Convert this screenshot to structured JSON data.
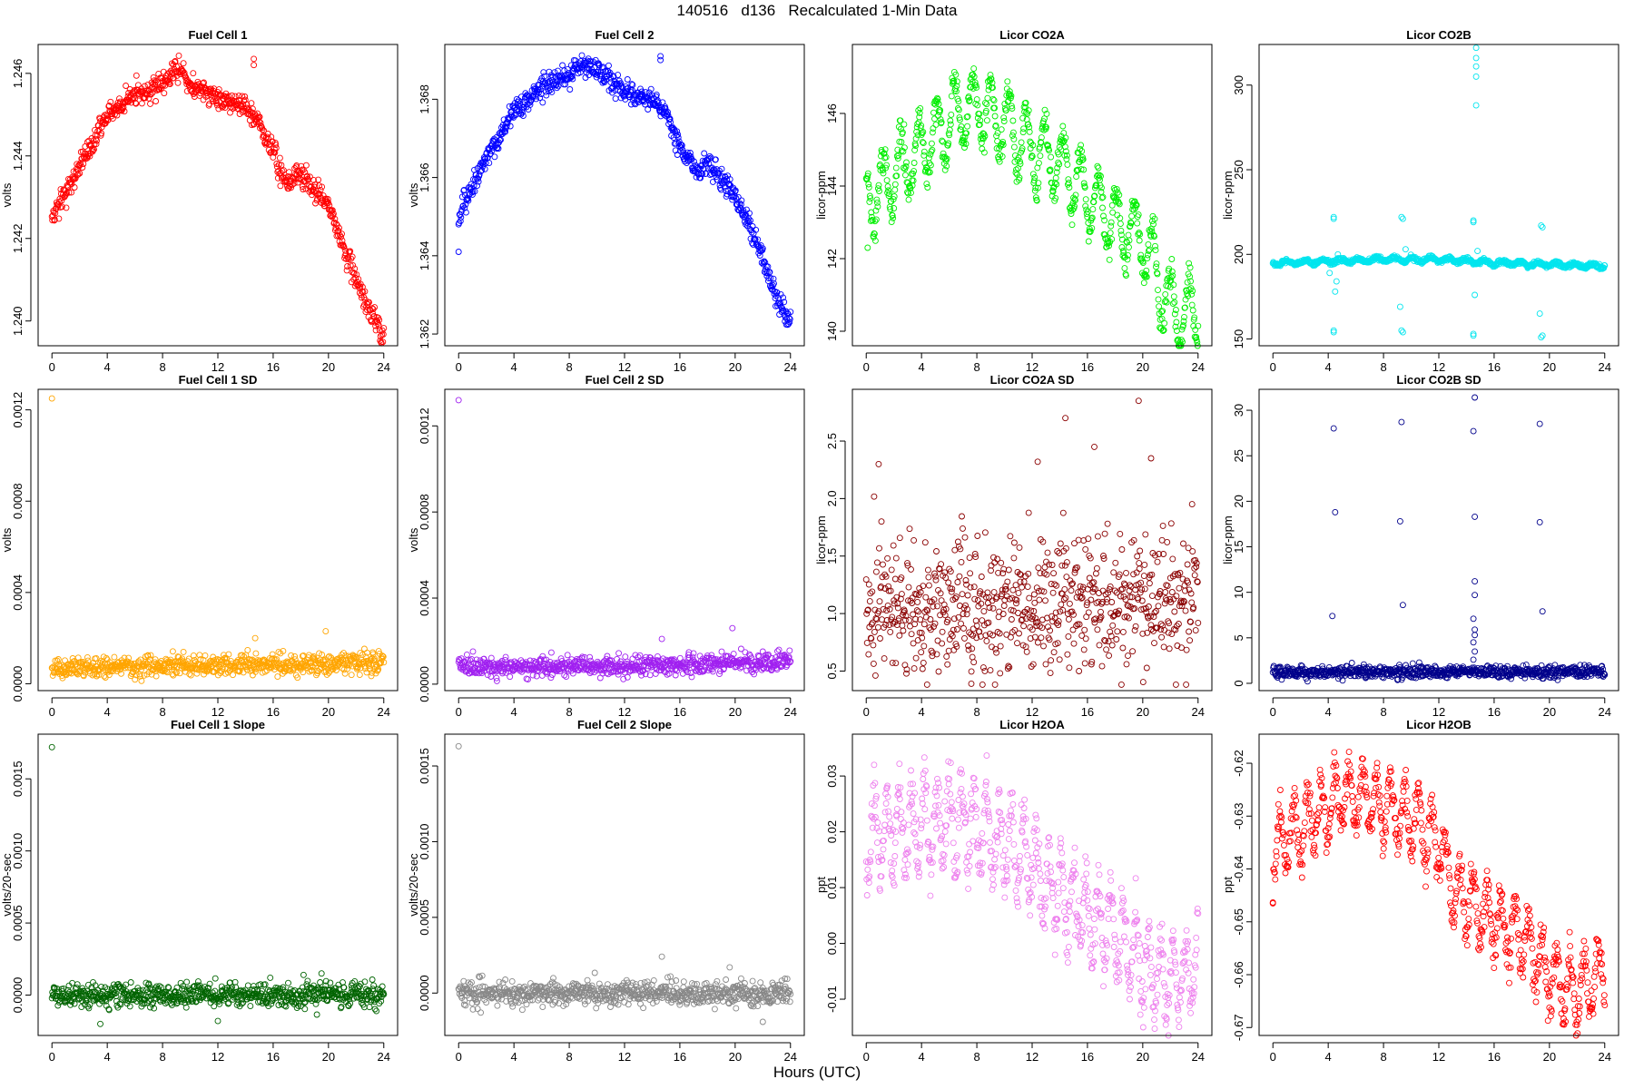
{
  "page": {
    "title": "140516   d136   Recalculated 1-Min Data",
    "x_caption": "Hours (UTC)"
  },
  "chart_data": [
    {
      "type": "scatter",
      "title": "Fuel Cell 1",
      "xlabel": "",
      "ylabel": "volts",
      "xlim": [
        -1,
        25
      ],
      "ylim": [
        1.2394,
        1.2467
      ],
      "xticks": [
        0,
        4,
        8,
        12,
        16,
        20,
        24
      ],
      "xtick_labels": [
        "0",
        "4",
        "8",
        "12",
        "16",
        "20",
        "24"
      ],
      "yticks": [
        1.24,
        1.242,
        1.244,
        1.246
      ],
      "ytick_labels": [
        "1.240",
        "1.242",
        "1.244",
        "1.246"
      ],
      "color": "#ff0000",
      "trend": [
        [
          0,
          1.2425
        ],
        [
          2,
          1.2437
        ],
        [
          4,
          1.245
        ],
        [
          6,
          1.2455
        ],
        [
          8,
          1.2457
        ],
        [
          9,
          1.2462
        ],
        [
          10,
          1.2457
        ],
        [
          12,
          1.2454
        ],
        [
          14,
          1.2452
        ],
        [
          15,
          1.2448
        ],
        [
          16,
          1.2441
        ],
        [
          17,
          1.2433
        ],
        [
          18,
          1.2436
        ],
        [
          20,
          1.2428
        ],
        [
          22,
          1.241
        ],
        [
          23,
          1.2402
        ],
        [
          24,
          1.2397
        ]
      ],
      "noise": 0.00014,
      "outliers": [
        [
          14.6,
          1.24635
        ],
        [
          14.6,
          1.2462
        ]
      ]
    },
    {
      "type": "scatter",
      "title": "Fuel Cell 2",
      "xlabel": "",
      "ylabel": "volts",
      "xlim": [
        -1,
        25
      ],
      "ylim": [
        1.3617,
        1.3694
      ],
      "xticks": [
        0,
        4,
        8,
        12,
        16,
        20,
        24
      ],
      "xtick_labels": [
        "0",
        "4",
        "8",
        "12",
        "16",
        "20",
        "24"
      ],
      "yticks": [
        1.362,
        1.364,
        1.366,
        1.368
      ],
      "ytick_labels": [
        "1.362",
        "1.364",
        "1.366",
        "1.368"
      ],
      "color": "#0000ff",
      "trend": [
        [
          0,
          1.365
        ],
        [
          2,
          1.3665
        ],
        [
          4,
          1.3677
        ],
        [
          6,
          1.3683
        ],
        [
          8,
          1.3686
        ],
        [
          9,
          1.3689
        ],
        [
          10,
          1.3687
        ],
        [
          12,
          1.3682
        ],
        [
          14,
          1.368
        ],
        [
          15,
          1.3676
        ],
        [
          16,
          1.3668
        ],
        [
          17,
          1.3662
        ],
        [
          18,
          1.3664
        ],
        [
          20,
          1.3655
        ],
        [
          22,
          1.364
        ],
        [
          23,
          1.3629
        ],
        [
          24,
          1.3623
        ]
      ],
      "noise": 0.00014,
      "outliers": [
        [
          0,
          1.3641
        ],
        [
          14.6,
          1.3691
        ],
        [
          14.6,
          1.369
        ]
      ]
    },
    {
      "type": "scatter",
      "title": "Licor CO2A",
      "xlabel": "",
      "ylabel": "licor-ppm",
      "xlim": [
        -1,
        25
      ],
      "ylim": [
        139.6,
        147.9
      ],
      "xticks": [
        0,
        4,
        8,
        12,
        16,
        20,
        24
      ],
      "xtick_labels": [
        "0",
        "4",
        "8",
        "12",
        "16",
        "20",
        "24"
      ],
      "yticks": [
        140,
        142,
        144,
        146
      ],
      "ytick_labels": [
        "140",
        "142",
        "144",
        "146"
      ],
      "color": "#00ee00",
      "trend": [
        [
          0,
          143.5
        ],
        [
          1,
          143.9
        ],
        [
          2,
          144.3
        ],
        [
          4,
          145.0
        ],
        [
          6,
          145.8
        ],
        [
          8,
          146.2
        ],
        [
          10,
          145.8
        ],
        [
          12,
          145.0
        ],
        [
          14,
          144.6
        ],
        [
          16,
          143.8
        ],
        [
          18,
          143.0
        ],
        [
          20,
          142.5
        ],
        [
          21,
          141.6
        ],
        [
          22,
          140.6
        ],
        [
          23,
          140.4
        ],
        [
          24,
          140.7
        ]
      ],
      "noise": 0.22,
      "wave": {
        "amp": 0.95,
        "period": 1.3
      },
      "outliers": [
        [
          0.1,
          142.3
        ]
      ]
    },
    {
      "type": "scatter",
      "title": "Licor CO2B",
      "xlabel": "",
      "ylabel": "licor-ppm",
      "xlim": [
        -1,
        25
      ],
      "ylim": [
        146,
        324
      ],
      "xticks": [
        0,
        4,
        8,
        12,
        16,
        20,
        24
      ],
      "xtick_labels": [
        "0",
        "4",
        "8",
        "12",
        "16",
        "20",
        "24"
      ],
      "yticks": [
        150,
        200,
        250,
        300
      ],
      "ytick_labels": [
        "150",
        "200",
        "250",
        "300"
      ],
      "color": "#00e5ee",
      "trend": [
        [
          0,
          195
        ],
        [
          4,
          196
        ],
        [
          8,
          197
        ],
        [
          12,
          197
        ],
        [
          16,
          195
        ],
        [
          20,
          194
        ],
        [
          24,
          193
        ]
      ],
      "noise": 0.6,
      "wave": {
        "amp": 1.2,
        "period": 1.3
      },
      "outliers": [
        [
          4.4,
          222
        ],
        [
          4.4,
          221
        ],
        [
          4.4,
          155
        ],
        [
          4.4,
          154
        ],
        [
          4.5,
          178
        ],
        [
          4.6,
          184
        ],
        [
          9.3,
          222
        ],
        [
          9.4,
          221
        ],
        [
          9.3,
          155
        ],
        [
          9.4,
          154
        ],
        [
          9.2,
          169
        ],
        [
          14.5,
          220
        ],
        [
          14.5,
          219
        ],
        [
          14.5,
          153
        ],
        [
          14.5,
          152
        ],
        [
          14.6,
          176
        ],
        [
          14.7,
          322
        ],
        [
          14.7,
          316
        ],
        [
          14.7,
          311
        ],
        [
          14.7,
          305
        ],
        [
          14.7,
          288
        ],
        [
          19.4,
          217
        ],
        [
          19.5,
          216
        ],
        [
          19.4,
          151
        ],
        [
          19.5,
          152
        ],
        [
          19.3,
          165
        ],
        [
          4.1,
          189
        ],
        [
          14.8,
          202
        ],
        [
          4.7,
          200
        ],
        [
          9.6,
          203
        ]
      ]
    },
    {
      "type": "scatter",
      "title": "Fuel Cell 1 SD",
      "xlabel": "",
      "ylabel": "volts",
      "xlim": [
        -1,
        25
      ],
      "ylim": [
        -3e-05,
        0.00129
      ],
      "xticks": [
        0,
        4,
        8,
        12,
        16,
        20,
        24
      ],
      "xtick_labels": [
        "0",
        "4",
        "8",
        "12",
        "16",
        "20",
        "24"
      ],
      "yticks": [
        0.0,
        0.0004,
        0.0008,
        0.0012
      ],
      "ytick_labels": [
        "0.0000",
        "0.0004",
        "0.0008",
        "0.0012"
      ],
      "color": "#ffa500",
      "trend": [
        [
          0,
          7e-05
        ],
        [
          12,
          8e-05
        ],
        [
          20,
          9e-05
        ],
        [
          24,
          0.0001
        ]
      ],
      "noise": 2.2e-05,
      "outliers": [
        [
          0,
          0.00125
        ],
        [
          19.8,
          0.00023
        ],
        [
          14.7,
          0.0002
        ]
      ]
    },
    {
      "type": "scatter",
      "title": "Fuel Cell 2 SD",
      "xlabel": "",
      "ylabel": "volts",
      "xlim": [
        -1,
        25
      ],
      "ylim": [
        -3e-05,
        0.00137
      ],
      "xticks": [
        0,
        4,
        8,
        12,
        16,
        20,
        24
      ],
      "xtick_labels": [
        "0",
        "4",
        "8",
        "12",
        "16",
        "20",
        "24"
      ],
      "yticks": [
        0.0,
        0.0004,
        0.0008,
        0.0012
      ],
      "ytick_labels": [
        "0.0000",
        "0.0004",
        "0.0008",
        "0.0012"
      ],
      "color": "#a020f0",
      "trend": [
        [
          0,
          8e-05
        ],
        [
          12,
          8e-05
        ],
        [
          20,
          0.0001
        ],
        [
          24,
          0.00011
        ]
      ],
      "noise": 2.2e-05,
      "outliers": [
        [
          0,
          0.00132
        ],
        [
          19.8,
          0.00026
        ],
        [
          14.7,
          0.00021
        ]
      ]
    },
    {
      "type": "scatter",
      "title": "Licor CO2A SD",
      "xlabel": "",
      "ylabel": "licor-ppm",
      "xlim": [
        -1,
        25
      ],
      "ylim": [
        0.33,
        2.95
      ],
      "xticks": [
        0,
        4,
        8,
        12,
        16,
        20,
        24
      ],
      "xtick_labels": [
        "0",
        "4",
        "8",
        "12",
        "16",
        "20",
        "24"
      ],
      "yticks": [
        0.5,
        1.0,
        1.5,
        2.0,
        2.5
      ],
      "ytick_labels": [
        "0.5",
        "1.0",
        "1.5",
        "2.0",
        "2.5"
      ],
      "color": "#8b0000",
      "trend": [
        [
          0,
          1.1
        ],
        [
          12,
          1.05
        ],
        [
          18,
          1.15
        ],
        [
          24,
          1.15
        ]
      ],
      "noise": 0.3,
      "outliers": [
        [
          19.7,
          2.85
        ],
        [
          14.4,
          2.7
        ],
        [
          16.5,
          2.45
        ],
        [
          0.9,
          2.3
        ],
        [
          12.4,
          2.32
        ],
        [
          20.6,
          2.35
        ],
        [
          7.6,
          0.39
        ]
      ]
    },
    {
      "type": "scatter",
      "title": "Licor CO2B SD",
      "xlabel": "",
      "ylabel": "licor-ppm",
      "xlim": [
        -1,
        25
      ],
      "ylim": [
        -0.8,
        32.3
      ],
      "xticks": [
        0,
        4,
        8,
        12,
        16,
        20,
        24
      ],
      "xtick_labels": [
        "0",
        "4",
        "8",
        "12",
        "16",
        "20",
        "24"
      ],
      "yticks": [
        0,
        5,
        10,
        15,
        20,
        25,
        30
      ],
      "ytick_labels": [
        "0",
        "5",
        "10",
        "15",
        "20",
        "25",
        "30"
      ],
      "color": "#00008b",
      "trend": [
        [
          0,
          1.2
        ],
        [
          24,
          1.3
        ]
      ],
      "noise": 0.35,
      "outliers": [
        [
          4.4,
          28
        ],
        [
          4.5,
          18.8
        ],
        [
          4.3,
          7.4
        ],
        [
          9.3,
          28.7
        ],
        [
          9.2,
          17.8
        ],
        [
          9.4,
          8.6
        ],
        [
          14.5,
          27.7
        ],
        [
          14.6,
          31.4
        ],
        [
          14.6,
          18.3
        ],
        [
          14.6,
          11.2
        ],
        [
          14.6,
          9.7
        ],
        [
          14.5,
          7.1
        ],
        [
          14.6,
          5.9
        ],
        [
          14.6,
          5.3
        ],
        [
          14.5,
          4.5
        ],
        [
          14.6,
          3.5
        ],
        [
          19.3,
          28.5
        ],
        [
          19.3,
          17.7
        ],
        [
          19.5,
          7.9
        ],
        [
          14.5,
          2.6
        ]
      ]
    },
    {
      "type": "scatter",
      "title": "Fuel Cell 1 Slope",
      "xlabel": "",
      "ylabel": "volts/20-sec",
      "xlim": [
        -1,
        25
      ],
      "ylim": [
        -0.00028,
        0.00181
      ],
      "xticks": [
        0,
        4,
        8,
        12,
        16,
        20,
        24
      ],
      "xtick_labels": [
        "0",
        "4",
        "8",
        "12",
        "16",
        "20",
        "24"
      ],
      "yticks": [
        0.0,
        0.0005,
        0.001,
        0.0015
      ],
      "ytick_labels": [
        "0.0000",
        "0.0005",
        "0.0010",
        "0.0015"
      ],
      "color": "#006400",
      "trend": [
        [
          0,
          0.0
        ],
        [
          24,
          0.0
        ]
      ],
      "noise": 4e-05,
      "outliers": [
        [
          0,
          0.00172
        ],
        [
          3.5,
          -0.0002
        ],
        [
          19.5,
          0.00015
        ],
        [
          18.2,
          0.00014
        ],
        [
          12,
          -0.00018
        ]
      ]
    },
    {
      "type": "scatter",
      "title": "Fuel Cell 2 Slope",
      "xlabel": "",
      "ylabel": "volts/20-sec",
      "xlim": [
        -1,
        25
      ],
      "ylim": [
        -0.00028,
        0.00171
      ],
      "xticks": [
        0,
        4,
        8,
        12,
        16,
        20,
        24
      ],
      "xtick_labels": [
        "0",
        "4",
        "8",
        "12",
        "16",
        "20",
        "24"
      ],
      "yticks": [
        0.0,
        0.0005,
        0.001,
        0.0015
      ],
      "ytick_labels": [
        "0.0000",
        "0.0005",
        "0.0010",
        "0.0015"
      ],
      "color": "#888888",
      "trend": [
        [
          0,
          0.0
        ],
        [
          24,
          0.0
        ]
      ],
      "noise": 4e-05,
      "outliers": [
        [
          0,
          0.00163
        ],
        [
          14.7,
          0.00024
        ],
        [
          19.6,
          0.00017
        ],
        [
          22,
          -0.00019
        ]
      ]
    },
    {
      "type": "scatter",
      "title": "Licor H2OA",
      "xlabel": "",
      "ylabel": "ppt",
      "xlim": [
        -1,
        25
      ],
      "ylim": [
        -0.0165,
        0.0375
      ],
      "xticks": [
        0,
        4,
        8,
        12,
        16,
        20,
        24
      ],
      "xtick_labels": [
        "0",
        "4",
        "8",
        "12",
        "16",
        "20",
        "24"
      ],
      "yticks": [
        -0.01,
        0.0,
        0.01,
        0.02,
        0.03
      ],
      "ytick_labels": [
        "-0.01",
        "0.00",
        "0.01",
        "0.02",
        "0.03"
      ],
      "color": "#ee82ee",
      "trend": [
        [
          0,
          0.019
        ],
        [
          2,
          0.02
        ],
        [
          4,
          0.021
        ],
        [
          6,
          0.022
        ],
        [
          8,
          0.021
        ],
        [
          10,
          0.019
        ],
        [
          12,
          0.014
        ],
        [
          13,
          0.01
        ],
        [
          16,
          0.005
        ],
        [
          18,
          0.002
        ],
        [
          20,
          -0.004
        ],
        [
          22,
          -0.007
        ],
        [
          24,
          -0.003
        ]
      ],
      "noise": 0.0025,
      "wave": {
        "amp": 0.007,
        "period": 0.9
      }
    },
    {
      "type": "scatter",
      "title": "Licor H2OB",
      "xlabel": "",
      "ylabel": "ppt",
      "xlim": [
        -1,
        25
      ],
      "ylim": [
        -0.6715,
        -0.6145
      ],
      "xticks": [
        0,
        4,
        8,
        12,
        16,
        20,
        24
      ],
      "xtick_labels": [
        "0",
        "4",
        "8",
        "12",
        "16",
        "20",
        "24"
      ],
      "yticks": [
        -0.67,
        -0.66,
        -0.65,
        -0.64,
        -0.63,
        -0.62
      ],
      "ytick_labels": [
        "-0.67",
        "-0.66",
        "-0.65",
        "-0.64",
        "-0.63",
        "-0.62"
      ],
      "color": "#ff0000",
      "trend": [
        [
          0,
          -0.637
        ],
        [
          2,
          -0.632
        ],
        [
          4,
          -0.628
        ],
        [
          6,
          -0.626
        ],
        [
          8,
          -0.628
        ],
        [
          10,
          -0.63
        ],
        [
          12,
          -0.635
        ],
        [
          13,
          -0.644
        ],
        [
          16,
          -0.65
        ],
        [
          18,
          -0.653
        ],
        [
          20,
          -0.66
        ],
        [
          22,
          -0.664
        ],
        [
          24,
          -0.658
        ]
      ],
      "noise": 0.0018,
      "wave": {
        "amp": 0.006,
        "period": 1.0
      },
      "outliers": [
        [
          0,
          -0.6465
        ]
      ]
    }
  ]
}
